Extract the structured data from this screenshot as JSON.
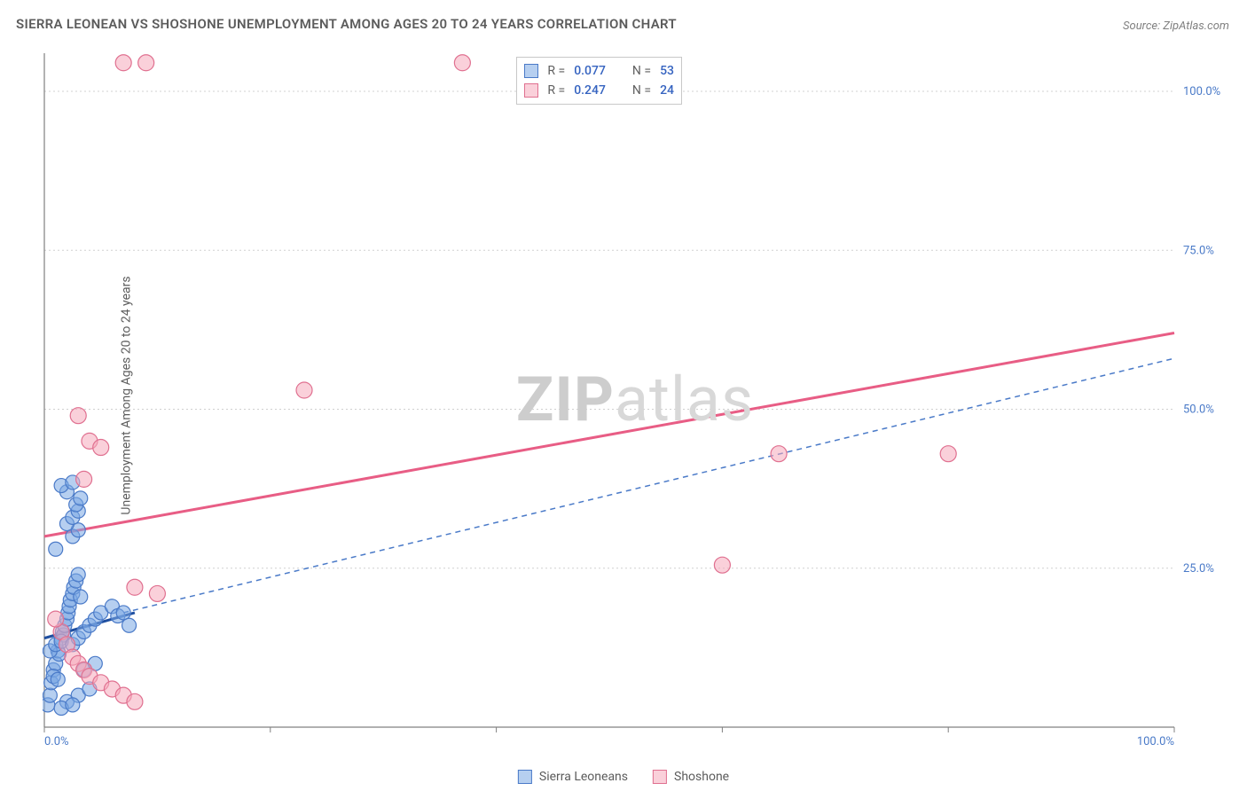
{
  "chart": {
    "type": "scatter",
    "title": "SIERRA LEONEAN VS SHOSHONE UNEMPLOYMENT AMONG AGES 20 TO 24 YEARS CORRELATION CHART",
    "source": "Source: ZipAtlas.com",
    "ylabel": "Unemployment Among Ages 20 to 24 years",
    "watermark_bold": "ZIP",
    "watermark_rest": "atlas",
    "xlim": [
      0,
      100
    ],
    "ylim": [
      0,
      106
    ],
    "x_ticks": [
      0,
      20,
      40,
      60,
      80,
      100
    ],
    "x_tick_labels": {
      "0": "0.0%",
      "100": "100.0%"
    },
    "y_grid": [
      25,
      50,
      75,
      100
    ],
    "y_tick_labels": {
      "25": "25.0%",
      "50": "50.0%",
      "75": "75.0%",
      "100": "100.0%"
    },
    "background_color": "#ffffff",
    "grid_color": "#d0d0d0",
    "axis_color": "#808080",
    "tick_label_color": "#4a7ac8",
    "series": [
      {
        "name": "Sierra Leoneans",
        "legend_label": "Sierra Leoneans",
        "marker_fill": "rgba(122,168,227,0.55)",
        "marker_stroke": "#4a7ac8",
        "marker_r": 8,
        "R": "0.077",
        "N": "53",
        "points": [
          [
            0.3,
            3.5
          ],
          [
            0.5,
            5
          ],
          [
            0.6,
            7
          ],
          [
            0.8,
            9
          ],
          [
            1.0,
            10
          ],
          [
            1.2,
            12
          ],
          [
            1.3,
            11.5
          ],
          [
            1.5,
            14
          ],
          [
            1.6,
            15
          ],
          [
            1.7,
            14.5
          ],
          [
            1.8,
            16
          ],
          [
            2.0,
            17
          ],
          [
            2.1,
            18
          ],
          [
            2.2,
            19
          ],
          [
            2.3,
            20
          ],
          [
            2.5,
            21
          ],
          [
            2.6,
            22
          ],
          [
            2.8,
            23
          ],
          [
            3.0,
            24
          ],
          [
            3.2,
            20.5
          ],
          [
            1.0,
            28
          ],
          [
            2.5,
            30
          ],
          [
            3.0,
            31
          ],
          [
            2.0,
            32
          ],
          [
            2.5,
            33
          ],
          [
            3.0,
            34
          ],
          [
            2.8,
            35
          ],
          [
            3.2,
            36
          ],
          [
            2.0,
            37
          ],
          [
            1.5,
            38
          ],
          [
            2.5,
            38.5
          ],
          [
            0.5,
            12
          ],
          [
            1.0,
            13
          ],
          [
            1.5,
            13.5
          ],
          [
            0.8,
            8
          ],
          [
            1.2,
            7.5
          ],
          [
            2.5,
            13
          ],
          [
            3.0,
            14
          ],
          [
            3.5,
            15
          ],
          [
            4.0,
            16
          ],
          [
            4.5,
            17
          ],
          [
            5.0,
            18
          ],
          [
            6.0,
            19
          ],
          [
            6.5,
            17.5
          ],
          [
            7.0,
            18
          ],
          [
            7.5,
            16
          ],
          [
            2.0,
            4
          ],
          [
            3.0,
            5
          ],
          [
            4.0,
            6
          ],
          [
            1.5,
            3
          ],
          [
            2.5,
            3.5
          ],
          [
            3.5,
            9
          ],
          [
            4.5,
            10
          ]
        ]
      },
      {
        "name": "Shoshone",
        "legend_label": "Shoshone",
        "marker_fill": "rgba(245,170,188,0.55)",
        "marker_stroke": "#e07090",
        "marker_r": 9,
        "R": "0.247",
        "N": "24",
        "points": [
          [
            7,
            104.5
          ],
          [
            9,
            104.5
          ],
          [
            37,
            104.5
          ],
          [
            3,
            49
          ],
          [
            4,
            45
          ],
          [
            5,
            44
          ],
          [
            3.5,
            39
          ],
          [
            23,
            53
          ],
          [
            60,
            25.5
          ],
          [
            65,
            43
          ],
          [
            80,
            43
          ],
          [
            8,
            22
          ],
          [
            10,
            21
          ],
          [
            1.5,
            15
          ],
          [
            2,
            13
          ],
          [
            2.5,
            11
          ],
          [
            3,
            10
          ],
          [
            3.5,
            9
          ],
          [
            4,
            8
          ],
          [
            5,
            7
          ],
          [
            6,
            6
          ],
          [
            7,
            5
          ],
          [
            8,
            4
          ],
          [
            1,
            17
          ]
        ]
      }
    ],
    "trend_lines": {
      "pink_solid": {
        "x1": 0,
        "y1": 30,
        "x2": 100,
        "y2": 62,
        "color": "#e85d85",
        "width": 3
      },
      "blue_dashed": {
        "x1": 7,
        "y1": 18,
        "x2": 100,
        "y2": 58,
        "color": "#4a7ac8",
        "width": 1.5,
        "dash": "6,5"
      },
      "blue_solid": {
        "x1": 0,
        "y1": 14,
        "x2": 8,
        "y2": 18,
        "color": "#1f4fa0",
        "width": 3
      }
    },
    "stat_box": {
      "r_label": "R =",
      "n_label": "N ="
    }
  }
}
